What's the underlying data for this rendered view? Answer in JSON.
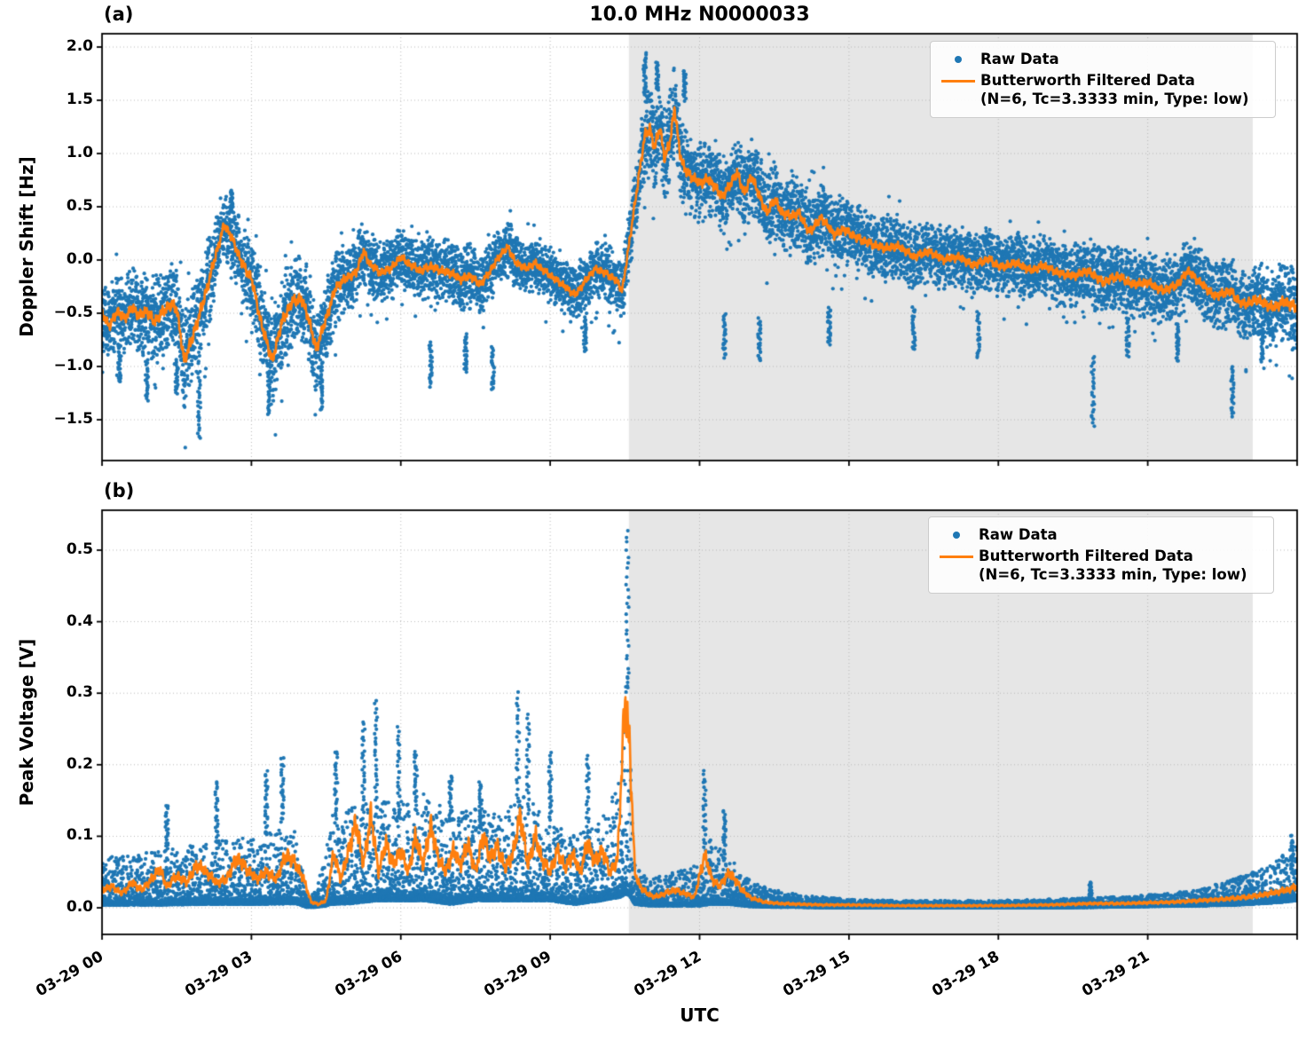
{
  "figure": {
    "title": "10.0 MHz N0000033",
    "xlabel": "UTC",
    "colors": {
      "raw": "#1f77b4",
      "filtered": "#ff7f0e",
      "shade": "#e6e6e6",
      "grid": "#b8b8b8",
      "spine": "#000000",
      "legend_border": "#cccccc"
    },
    "legend": {
      "raw_label": "Raw Data",
      "filtered_label_line1": "Butterworth Filtered Data",
      "filtered_label_line2": "(N=6, Tc=3.3333 min, Type: low)"
    }
  },
  "chart_data": [
    {
      "type": "scatter",
      "panel_tag": "(a)",
      "title": "10.0 MHz N0000033",
      "ylabel": "Doppler Shift [Hz]",
      "xlabel": "UTC",
      "xlim_hours": [
        0,
        24
      ],
      "ylim": [
        -1.8833,
        2.125
      ],
      "grid": true,
      "legend_position": "upper right",
      "shaded_span_hours": [
        10.58,
        23.11
      ],
      "yticks": [
        {
          "v": 2.0,
          "label": "2.0"
        },
        {
          "v": 1.5,
          "label": "1.5"
        },
        {
          "v": 1.0,
          "label": "1.0"
        },
        {
          "v": 0.5,
          "label": "0.5"
        },
        {
          "v": 0.0,
          "label": "0.0"
        },
        {
          "v": -0.5,
          "label": "−0.5"
        },
        {
          "v": -1.0,
          "label": "−1.0"
        },
        {
          "v": -1.5,
          "label": "−1.5"
        }
      ],
      "xticks": [
        {
          "t": 0,
          "label": "03-29 00"
        },
        {
          "t": 3,
          "label": "03-29 03"
        },
        {
          "t": 6,
          "label": "03-29 06"
        },
        {
          "t": 9,
          "label": "03-29 09"
        },
        {
          "t": 12,
          "label": "03-29 12"
        },
        {
          "t": 15,
          "label": "03-29 15"
        },
        {
          "t": 18,
          "label": "03-29 18"
        },
        {
          "t": 21,
          "label": "03-29 21"
        }
      ],
      "series": [
        {
          "name": "Raw Data",
          "style": "scatter",
          "color": "#1f77b4",
          "band": {
            "t": [
              0,
              1,
              2,
              2.5,
              3.4,
              4.3,
              5,
              6,
              7,
              8,
              9,
              10,
              10.6,
              11,
              11.5,
              12,
              13,
              14,
              15,
              16,
              17,
              18,
              19,
              20,
              21,
              22,
              23,
              24
            ],
            "half": [
              0.33,
              0.38,
              0.45,
              0.3,
              0.42,
              0.4,
              0.3,
              0.26,
              0.3,
              0.26,
              0.25,
              0.25,
              0.3,
              0.42,
              0.4,
              0.35,
              0.35,
              0.33,
              0.3,
              0.28,
              0.28,
              0.28,
              0.28,
              0.3,
              0.3,
              0.3,
              0.33,
              0.4
            ]
          },
          "outlier_columns": [
            [
              0.35,
              -1.15,
              -0.8
            ],
            [
              0.9,
              -1.32,
              -0.95
            ],
            [
              1.5,
              -1.25,
              -0.95
            ],
            [
              1.95,
              -1.67,
              -1.05
            ],
            [
              2.6,
              0.45,
              0.65
            ],
            [
              3.35,
              -1.45,
              -1.05
            ],
            [
              4.4,
              -1.42,
              -0.98
            ],
            [
              6.6,
              -1.18,
              -0.78
            ],
            [
              7.3,
              -1.05,
              -0.7
            ],
            [
              7.85,
              -1.22,
              -0.82
            ],
            [
              9.7,
              -0.85,
              -0.55
            ],
            [
              10.9,
              1.55,
              1.93
            ],
            [
              11.15,
              1.6,
              1.85
            ],
            [
              11.7,
              1.5,
              1.78
            ],
            [
              12.5,
              -0.92,
              -0.5
            ],
            [
              13.2,
              -0.95,
              -0.55
            ],
            [
              14.6,
              -0.8,
              -0.45
            ],
            [
              16.3,
              -0.85,
              -0.45
            ],
            [
              17.6,
              -0.92,
              -0.5
            ],
            [
              19.9,
              -1.56,
              -0.9
            ],
            [
              20.6,
              -0.9,
              -0.55
            ],
            [
              21.6,
              -0.95,
              -0.6
            ],
            [
              22.7,
              -1.47,
              -1.0
            ],
            [
              23.3,
              -0.95,
              -0.6
            ]
          ]
        },
        {
          "name": "Butterworth Filtered Data (N=6, Tc=3.3333 min, Type: low)",
          "style": "line",
          "color": "#ff7f0e",
          "t": [
            0,
            0.15,
            0.3,
            0.45,
            0.6,
            0.75,
            0.9,
            1.05,
            1.2,
            1.35,
            1.5,
            1.65,
            1.8,
            2.0,
            2.2,
            2.45,
            2.6,
            2.8,
            3.0,
            3.2,
            3.42,
            3.6,
            3.8,
            4.0,
            4.15,
            4.3,
            4.5,
            4.7,
            4.9,
            5.1,
            5.25,
            5.4,
            5.6,
            5.8,
            6.0,
            6.2,
            6.4,
            6.6,
            6.8,
            7.0,
            7.2,
            7.4,
            7.6,
            7.8,
            8.0,
            8.15,
            8.3,
            8.5,
            8.7,
            8.9,
            9.1,
            9.3,
            9.5,
            9.7,
            9.9,
            10.1,
            10.3,
            10.45,
            10.6,
            10.75,
            10.9,
            11.0,
            11.1,
            11.2,
            11.3,
            11.4,
            11.5,
            11.6,
            11.7,
            11.85,
            12.0,
            12.15,
            12.3,
            12.45,
            12.6,
            12.75,
            12.9,
            13.05,
            13.2,
            13.35,
            13.5,
            13.65,
            13.8,
            14.0,
            14.2,
            14.45,
            14.7,
            14.9,
            15.15,
            15.4,
            15.7,
            16.0,
            16.3,
            16.6,
            16.9,
            17.2,
            17.5,
            17.8,
            18.05,
            18.35,
            18.65,
            18.9,
            19.2,
            19.5,
            19.8,
            20.1,
            20.4,
            20.7,
            21.0,
            21.3,
            21.6,
            21.8,
            22.05,
            22.35,
            22.65,
            22.9,
            23.2,
            23.5,
            23.75,
            24.0
          ],
          "v": [
            -0.5,
            -0.62,
            -0.48,
            -0.55,
            -0.45,
            -0.52,
            -0.48,
            -0.58,
            -0.5,
            -0.42,
            -0.45,
            -0.95,
            -0.75,
            -0.45,
            -0.1,
            0.33,
            0.22,
            -0.02,
            -0.17,
            -0.6,
            -0.95,
            -0.6,
            -0.4,
            -0.36,
            -0.55,
            -0.84,
            -0.55,
            -0.25,
            -0.17,
            -0.12,
            0.08,
            -0.05,
            -0.12,
            -0.08,
            0.03,
            -0.05,
            -0.1,
            -0.06,
            -0.1,
            -0.12,
            -0.18,
            -0.15,
            -0.23,
            -0.1,
            0.05,
            0.12,
            -0.02,
            -0.08,
            -0.03,
            -0.11,
            -0.18,
            -0.25,
            -0.33,
            -0.2,
            -0.08,
            -0.12,
            -0.18,
            -0.28,
            0.2,
            0.69,
            1.17,
            1.23,
            1.05,
            1.25,
            0.95,
            1.1,
            1.43,
            1.01,
            0.85,
            0.78,
            0.72,
            0.76,
            0.7,
            0.59,
            0.7,
            0.82,
            0.63,
            0.79,
            0.6,
            0.44,
            0.57,
            0.45,
            0.41,
            0.44,
            0.26,
            0.4,
            0.24,
            0.29,
            0.21,
            0.16,
            0.11,
            0.13,
            0.03,
            0.08,
            0.005,
            0.03,
            -0.05,
            0.01,
            -0.07,
            -0.025,
            -0.1,
            -0.05,
            -0.12,
            -0.15,
            -0.1,
            -0.21,
            -0.15,
            -0.23,
            -0.21,
            -0.29,
            -0.23,
            -0.1,
            -0.21,
            -0.34,
            -0.29,
            -0.42,
            -0.37,
            -0.45,
            -0.39,
            -0.45
          ]
        }
      ]
    },
    {
      "type": "scatter",
      "panel_tag": "(b)",
      "ylabel": "Peak Voltage [V]",
      "xlabel": "UTC",
      "xlim_hours": [
        0,
        24
      ],
      "ylim": [
        -0.0372,
        0.5558
      ],
      "grid": true,
      "legend_position": "upper right",
      "shaded_span_hours": [
        10.58,
        23.11
      ],
      "yticks": [
        {
          "v": 0.5,
          "label": "0.5"
        },
        {
          "v": 0.4,
          "label": "0.4"
        },
        {
          "v": 0.3,
          "label": "0.3"
        },
        {
          "v": 0.2,
          "label": "0.2"
        },
        {
          "v": 0.1,
          "label": "0.1"
        },
        {
          "v": 0.0,
          "label": "0.0"
        }
      ],
      "xticks": [
        {
          "t": 0,
          "label": "03-29 00"
        },
        {
          "t": 3,
          "label": "03-29 03"
        },
        {
          "t": 6,
          "label": "03-29 06"
        },
        {
          "t": 9,
          "label": "03-29 09"
        },
        {
          "t": 12,
          "label": "03-29 12"
        },
        {
          "t": 15,
          "label": "03-29 15"
        },
        {
          "t": 18,
          "label": "03-29 18"
        },
        {
          "t": 21,
          "label": "03-29 21"
        }
      ],
      "series": [
        {
          "name": "Raw Data",
          "style": "scatter",
          "color": "#1f77b4",
          "band": {
            "t": [
              0,
              1,
              2,
              3,
              3.9,
              4.1,
              4.25,
              4.45,
              4.6,
              5,
              5.5,
              6,
              6.5,
              7,
              7.5,
              8,
              8.5,
              9,
              9.5,
              10,
              10.4,
              10.55,
              10.7,
              11,
              11.5,
              12,
              12.2,
              12.6,
              13,
              13.5,
              14,
              15,
              16,
              17,
              18,
              19,
              20,
              21,
              22,
              22.7,
              23.3,
              23.7,
              24
            ],
            "lo": [
              0.004,
              0.004,
              0.005,
              0.005,
              0.006,
              0.001,
              0.001,
              0.002,
              0.005,
              0.006,
              0.01,
              0.01,
              0.01,
              0.005,
              0.01,
              0.01,
              0.01,
              0.01,
              0.005,
              0.01,
              0.015,
              0.02,
              0.005,
              0.003,
              0.003,
              0.003,
              0.005,
              0.005,
              0.002,
              0.001,
              0.001,
              0.0,
              0.0,
              0.0,
              0.0,
              0.0,
              0.001,
              0.002,
              0.003,
              0.004,
              0.006,
              0.008,
              0.01
            ],
            "hi": [
              0.07,
              0.08,
              0.09,
              0.1,
              0.12,
              0.02,
              0.02,
              0.06,
              0.13,
              0.14,
              0.15,
              0.15,
              0.16,
              0.13,
              0.14,
              0.13,
              0.16,
              0.12,
              0.1,
              0.12,
              0.18,
              0.35,
              0.06,
              0.04,
              0.05,
              0.06,
              0.1,
              0.07,
              0.04,
              0.025,
              0.018,
              0.012,
              0.01,
              0.01,
              0.01,
              0.012,
              0.014,
              0.018,
              0.025,
              0.04,
              0.055,
              0.075,
              0.09
            ]
          },
          "outlier_columns": [
            [
              1.3,
              0.08,
              0.145
            ],
            [
              2.3,
              0.09,
              0.175
            ],
            [
              3.3,
              0.1,
              0.19
            ],
            [
              3.62,
              0.12,
              0.21
            ],
            [
              4.7,
              0.12,
              0.22
            ],
            [
              5.25,
              0.14,
              0.26
            ],
            [
              5.5,
              0.15,
              0.29
            ],
            [
              5.95,
              0.13,
              0.25
            ],
            [
              6.3,
              0.14,
              0.22
            ],
            [
              7.0,
              0.12,
              0.185
            ],
            [
              7.6,
              0.11,
              0.175
            ],
            [
              8.35,
              0.14,
              0.3
            ],
            [
              8.55,
              0.13,
              0.27
            ],
            [
              9.0,
              0.12,
              0.215
            ],
            [
              9.75,
              0.1,
              0.21
            ],
            [
              10.55,
              0.3,
              0.527
            ],
            [
              12.1,
              0.08,
              0.19
            ],
            [
              12.5,
              0.07,
              0.135
            ],
            [
              19.85,
              0.015,
              0.035
            ],
            [
              23.9,
              0.05,
              0.1
            ]
          ]
        },
        {
          "name": "Butterworth Filtered Data (N=6, Tc=3.3333 min, Type: low)",
          "style": "line",
          "color": "#ff7f0e",
          "t": [
            0,
            0.2,
            0.4,
            0.6,
            0.8,
            1.0,
            1.15,
            1.3,
            1.5,
            1.7,
            1.9,
            2.1,
            2.3,
            2.5,
            2.7,
            2.9,
            3.1,
            3.3,
            3.5,
            3.7,
            3.9,
            4.05,
            4.2,
            4.35,
            4.5,
            4.65,
            4.8,
            4.95,
            5.1,
            5.25,
            5.4,
            5.55,
            5.7,
            5.85,
            6.0,
            6.15,
            6.3,
            6.45,
            6.6,
            6.75,
            6.9,
            7.05,
            7.2,
            7.35,
            7.5,
            7.65,
            7.8,
            7.95,
            8.1,
            8.25,
            8.4,
            8.55,
            8.7,
            8.85,
            9.0,
            9.15,
            9.3,
            9.45,
            9.6,
            9.75,
            9.9,
            10.05,
            10.2,
            10.35,
            10.5,
            10.6,
            10.7,
            10.8,
            10.95,
            11.1,
            11.3,
            11.5,
            11.7,
            11.9,
            12.1,
            12.25,
            12.4,
            12.6,
            12.8,
            13.0,
            13.3,
            13.6,
            14.0,
            14.5,
            15.0,
            16.0,
            17.0,
            18.0,
            19.0,
            19.85,
            20.5,
            21.0,
            21.5,
            22.0,
            22.5,
            23.0,
            23.3,
            23.6,
            23.8,
            24.0
          ],
          "v": [
            0.025,
            0.03,
            0.02,
            0.035,
            0.025,
            0.04,
            0.055,
            0.03,
            0.045,
            0.035,
            0.06,
            0.05,
            0.035,
            0.04,
            0.07,
            0.055,
            0.04,
            0.05,
            0.04,
            0.075,
            0.06,
            0.04,
            0.008,
            0.005,
            0.01,
            0.075,
            0.04,
            0.08,
            0.12,
            0.06,
            0.13,
            0.05,
            0.09,
            0.06,
            0.08,
            0.05,
            0.1,
            0.06,
            0.115,
            0.07,
            0.05,
            0.08,
            0.06,
            0.09,
            0.05,
            0.1,
            0.07,
            0.085,
            0.055,
            0.075,
            0.13,
            0.06,
            0.1,
            0.065,
            0.05,
            0.08,
            0.055,
            0.075,
            0.05,
            0.09,
            0.065,
            0.08,
            0.05,
            0.065,
            0.29,
            0.22,
            0.05,
            0.03,
            0.02,
            0.015,
            0.02,
            0.025,
            0.02,
            0.015,
            0.075,
            0.04,
            0.03,
            0.05,
            0.03,
            0.015,
            0.008,
            0.006,
            0.005,
            0.004,
            0.004,
            0.003,
            0.003,
            0.003,
            0.004,
            0.006,
            0.006,
            0.007,
            0.008,
            0.01,
            0.012,
            0.015,
            0.018,
            0.022,
            0.025,
            0.03
          ]
        }
      ]
    }
  ]
}
